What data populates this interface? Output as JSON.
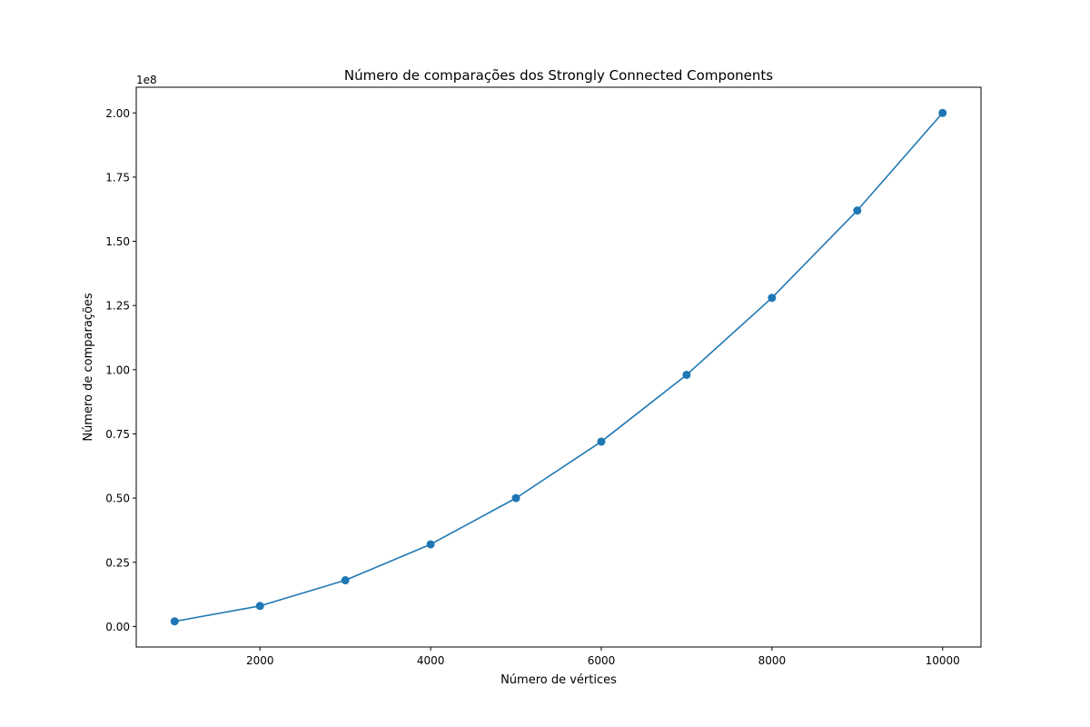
{
  "chart_data": {
    "type": "line",
    "title": "Número de comparações dos Strongly Connected Components",
    "xlabel": "Número de vértices",
    "ylabel": "Número de comparações",
    "y_offset_label": "1e8",
    "x": [
      1000,
      2000,
      3000,
      4000,
      5000,
      6000,
      7000,
      8000,
      9000,
      10000
    ],
    "series": [
      {
        "values": [
          2000000,
          8000000,
          18000000,
          32000000,
          50000000,
          72000000,
          98000000,
          128000000,
          162000000,
          200000000
        ],
        "color": "#1f77b4",
        "marker": "circle"
      }
    ],
    "xlim": [
      550,
      10450
    ],
    "ylim": [
      -8000000,
      210000000
    ],
    "x_ticks": [
      2000,
      4000,
      6000,
      8000,
      10000
    ],
    "x_tick_labels": [
      "2000",
      "4000",
      "6000",
      "8000",
      "10000"
    ],
    "y_ticks": [
      0,
      25000000,
      50000000,
      75000000,
      100000000,
      125000000,
      150000000,
      175000000,
      200000000
    ],
    "y_tick_labels": [
      "0.00",
      "0.25",
      "0.50",
      "0.75",
      "1.00",
      "1.25",
      "1.50",
      "1.75",
      "2.00"
    ],
    "grid": false,
    "legend": "none"
  }
}
